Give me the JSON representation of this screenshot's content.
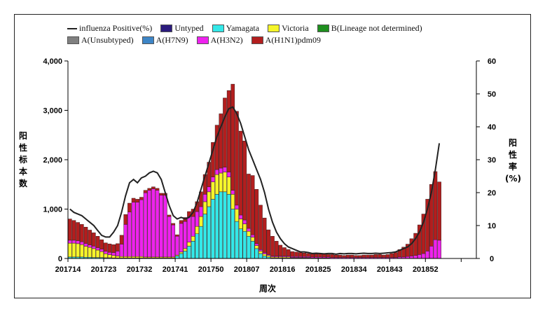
{
  "legend": [
    {
      "label": "influenza Positive(%)",
      "type": "line",
      "color": "#222222"
    },
    {
      "label": "Untyped",
      "type": "box",
      "color": "#2b1b7d"
    },
    {
      "label": "Yamagata",
      "type": "box",
      "color": "#33e8e8"
    },
    {
      "label": "Victoria",
      "type": "box",
      "color": "#f5f52a"
    },
    {
      "label": "B(Lineage not determined)",
      "type": "box",
      "color": "#1f8f1f"
    },
    {
      "label": "A(Unsubtyped)",
      "type": "box",
      "color": "#808080"
    },
    {
      "label": "A(H7N9)",
      "type": "box",
      "color": "#3d85c6"
    },
    {
      "label": "A(H3N2)",
      "type": "box",
      "color": "#ee22ee"
    },
    {
      "label": "A(H1N1)pdm09",
      "type": "box",
      "color": "#b31e1e"
    }
  ],
  "chart_data": {
    "type": "bar",
    "stacked": true,
    "xlabel": "周次",
    "ylabel": "阳性标本数",
    "y2label": "阳性率(%)",
    "ylim": [
      0,
      4000
    ],
    "y2lim": [
      0,
      60
    ],
    "yticks": [
      "0",
      "1,000",
      "2,000",
      "3,000",
      "4,000"
    ],
    "y2ticks": [
      "0",
      "10",
      "20",
      "30",
      "40",
      "50",
      "60"
    ],
    "xtick_labels": [
      "201714",
      "201723",
      "201732",
      "201741",
      "201750",
      "201807",
      "201816",
      "201825",
      "201834",
      "201843",
      "201852"
    ],
    "tick_every_weeks": 9,
    "weeks_start": "201714",
    "n_weeks": 94,
    "series": [
      {
        "name": "Yamagata",
        "color": "#33e8e8",
        "values": [
          30,
          30,
          30,
          30,
          25,
          25,
          20,
          20,
          20,
          15,
          15,
          10,
          10,
          10,
          10,
          10,
          10,
          10,
          10,
          10,
          10,
          10,
          10,
          10,
          10,
          10,
          10,
          50,
          100,
          150,
          250,
          350,
          500,
          650,
          900,
          1050,
          1200,
          1300,
          1350,
          1350,
          1300,
          1000,
          750,
          600,
          550,
          450,
          350,
          200,
          100,
          50,
          30,
          10,
          10,
          10,
          10,
          10,
          10,
          10,
          10,
          10,
          10,
          0,
          0,
          0,
          0,
          0,
          0,
          0,
          0,
          0,
          0,
          0,
          0,
          0,
          0,
          0,
          0,
          0,
          0,
          0,
          0,
          0,
          0,
          0,
          0,
          0,
          0,
          0,
          0,
          0,
          0,
          0,
          0,
          0,
          0
        ]
      },
      {
        "name": "Victoria",
        "color": "#f5f52a",
        "values": [
          280,
          280,
          270,
          250,
          220,
          200,
          180,
          150,
          120,
          80,
          60,
          50,
          40,
          30,
          30,
          30,
          30,
          30,
          30,
          20,
          20,
          20,
          20,
          20,
          20,
          20,
          20,
          20,
          30,
          50,
          80,
          100,
          150,
          200,
          250,
          300,
          350,
          400,
          380,
          400,
          350,
          300,
          250,
          200,
          150,
          100,
          80,
          60,
          50,
          40,
          30,
          20,
          20,
          20,
          20,
          20,
          10,
          10,
          10,
          10,
          10,
          10,
          10,
          10,
          10,
          10,
          0,
          0,
          0,
          0,
          0,
          0,
          0,
          0,
          0,
          0,
          0,
          0,
          0,
          0,
          0,
          0,
          0,
          0,
          0,
          0,
          0,
          0,
          0,
          0,
          0,
          0,
          0,
          0
        ]
      },
      {
        "name": "A(H3N2)",
        "color": "#ee22ee",
        "values": [
          60,
          60,
          60,
          60,
          60,
          50,
          50,
          50,
          50,
          50,
          50,
          60,
          100,
          250,
          650,
          900,
          1100,
          1100,
          1150,
          1300,
          1350,
          1380,
          1350,
          1250,
          1250,
          820,
          650,
          380,
          580,
          550,
          520,
          400,
          300,
          200,
          150,
          100,
          100,
          100,
          100,
          100,
          100,
          80,
          80,
          80,
          80,
          60,
          50,
          40,
          30,
          30,
          20,
          20,
          20,
          20,
          20,
          20,
          20,
          20,
          20,
          20,
          20,
          20,
          20,
          20,
          20,
          20,
          20,
          20,
          20,
          20,
          20,
          20,
          20,
          20,
          20,
          20,
          20,
          20,
          20,
          20,
          20,
          20,
          20,
          30,
          30,
          40,
          50,
          60,
          80,
          100,
          150,
          250,
          380,
          370
        ]
      },
      {
        "name": "A(H1N1)pdm09",
        "color": "#b31e1e",
        "values": [
          430,
          400,
          370,
          350,
          330,
          300,
          270,
          230,
          190,
          170,
          170,
          160,
          150,
          180,
          200,
          180,
          80,
          60,
          50,
          50,
          40,
          40,
          40,
          40,
          40,
          30,
          30,
          30,
          60,
          80,
          100,
          150,
          200,
          300,
          400,
          500,
          700,
          900,
          1100,
          1400,
          1650,
          2150,
          1900,
          1700,
          1600,
          1100,
          1200,
          1100,
          900,
          700,
          500,
          400,
          300,
          220,
          170,
          130,
          100,
          90,
          80,
          70,
          60,
          60,
          60,
          70,
          60,
          50,
          60,
          50,
          50,
          40,
          50,
          50,
          40,
          40,
          50,
          50,
          50,
          60,
          60,
          50,
          60,
          80,
          100,
          150,
          200,
          250,
          350,
          450,
          600,
          800,
          1050,
          1250,
          1380,
          1180
        ]
      }
    ],
    "line": {
      "name": "influenza Positive(%)",
      "color": "#222222",
      "values": [
        15,
        14,
        13.5,
        13,
        12,
        11,
        10,
        8.5,
        7,
        6.5,
        6.5,
        8,
        10,
        14,
        19,
        23,
        24,
        23,
        24.5,
        25,
        26,
        26.5,
        26,
        24,
        20,
        16,
        13,
        12,
        12.5,
        12,
        12.5,
        14,
        17,
        21,
        25,
        29,
        33,
        37,
        40,
        43,
        45.5,
        46,
        44,
        41,
        37,
        33,
        30,
        27,
        24,
        20,
        15,
        11,
        8,
        6,
        4.5,
        3.5,
        3,
        2.5,
        2,
        2,
        1.8,
        1.5,
        1.6,
        1.5,
        1.4,
        1.5,
        1.5,
        1.3,
        1.5,
        1.4,
        1.5,
        1.5,
        1.4,
        1.5,
        1.6,
        1.5,
        1.5,
        1.6,
        1.5,
        1.6,
        1.7,
        1.8,
        2,
        2.5,
        3,
        3.5,
        4.5,
        6,
        8,
        11,
        15,
        20,
        27,
        35
      ]
    }
  }
}
